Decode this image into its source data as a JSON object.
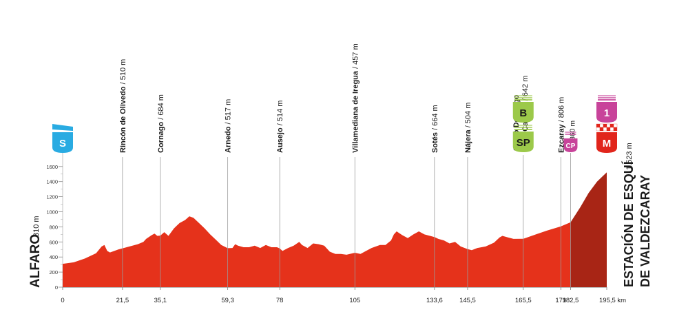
{
  "start_label": "ALFARO",
  "start_alt": "310 m",
  "finish_label_line1": "ESTACIÓN DE ESQUÍ",
  "finish_label_line2": "DE VALDEZCARAY",
  "finish_alt": "1.523 m",
  "colors": {
    "fill": "#e5321b",
    "finish_fill": "#a82515",
    "badge_start": "#29abe2",
    "badge_sprint": "#9cc94a",
    "badge_climb": "#c8439a",
    "badge_finish": "#e1251b"
  },
  "chart_data": {
    "type": "area",
    "xunit": "km",
    "ylabel": "",
    "xlim": [
      0,
      195.5
    ],
    "ylim": [
      0,
      1800
    ],
    "yticks": [
      0,
      200,
      400,
      600,
      800,
      1000,
      1200,
      1400,
      1600
    ],
    "xticks": [
      {
        "value": 0,
        "label": "0"
      },
      {
        "value": 21.5,
        "label": "21,5"
      },
      {
        "value": 35.1,
        "label": "35,1"
      },
      {
        "value": 59.3,
        "label": "59,3"
      },
      {
        "value": 78,
        "label": "78"
      },
      {
        "value": 105,
        "label": "105"
      },
      {
        "value": 133.6,
        "label": "133,6"
      },
      {
        "value": 145.5,
        "label": "145,5"
      },
      {
        "value": 165.5,
        "label": "165,5"
      },
      {
        "value": 179,
        "label": "179"
      },
      {
        "value": 182.5,
        "label": "182,5"
      },
      {
        "value": 195.5,
        "label": "195,5 km"
      }
    ],
    "profile": [
      [
        0,
        310
      ],
      [
        4,
        330
      ],
      [
        8,
        380
      ],
      [
        12,
        450
      ],
      [
        14,
        540
      ],
      [
        15,
        560
      ],
      [
        16,
        480
      ],
      [
        17,
        460
      ],
      [
        20,
        500
      ],
      [
        23,
        530
      ],
      [
        27,
        570
      ],
      [
        29,
        600
      ],
      [
        30,
        640
      ],
      [
        32,
        690
      ],
      [
        33,
        710
      ],
      [
        34,
        680
      ],
      [
        35.1,
        684
      ],
      [
        36.5,
        730
      ],
      [
        38,
        680
      ],
      [
        40,
        780
      ],
      [
        42,
        850
      ],
      [
        44,
        890
      ],
      [
        45.5,
        940
      ],
      [
        47,
        920
      ],
      [
        49,
        850
      ],
      [
        51,
        780
      ],
      [
        53,
        700
      ],
      [
        55,
        630
      ],
      [
        57,
        560
      ],
      [
        59.3,
        517
      ],
      [
        61,
        520
      ],
      [
        62,
        570
      ],
      [
        63,
        550
      ],
      [
        65,
        530
      ],
      [
        67,
        530
      ],
      [
        69,
        550
      ],
      [
        71,
        520
      ],
      [
        73,
        560
      ],
      [
        75,
        530
      ],
      [
        77,
        530
      ],
      [
        78,
        514
      ],
      [
        79,
        480
      ],
      [
        81,
        520
      ],
      [
        83,
        550
      ],
      [
        85,
        600
      ],
      [
        86,
        560
      ],
      [
        88,
        520
      ],
      [
        90,
        580
      ],
      [
        92,
        570
      ],
      [
        94,
        550
      ],
      [
        96,
        470
      ],
      [
        98,
        440
      ],
      [
        100,
        440
      ],
      [
        102,
        430
      ],
      [
        105,
        457
      ],
      [
        107,
        440
      ],
      [
        109,
        480
      ],
      [
        111,
        520
      ],
      [
        114,
        560
      ],
      [
        116,
        560
      ],
      [
        118,
        620
      ],
      [
        119,
        700
      ],
      [
        120,
        740
      ],
      [
        122,
        690
      ],
      [
        124,
        650
      ],
      [
        126,
        700
      ],
      [
        128,
        740
      ],
      [
        130,
        700
      ],
      [
        133.6,
        664
      ],
      [
        135,
        640
      ],
      [
        137,
        620
      ],
      [
        139,
        580
      ],
      [
        141,
        600
      ],
      [
        143,
        540
      ],
      [
        145.5,
        504
      ],
      [
        147,
        490
      ],
      [
        149,
        520
      ],
      [
        152,
        540
      ],
      [
        155,
        590
      ],
      [
        157,
        660
      ],
      [
        158,
        680
      ],
      [
        160,
        660
      ],
      [
        162,
        640
      ],
      [
        165.5,
        642
      ],
      [
        170,
        700
      ],
      [
        174,
        750
      ],
      [
        179,
        806
      ],
      [
        182.5,
        860
      ],
      [
        186,
        1060
      ],
      [
        189,
        1250
      ],
      [
        192,
        1400
      ],
      [
        195.5,
        1523
      ]
    ],
    "waypoints": [
      {
        "km": 21.5,
        "name": "Rincón de Olivedo",
        "alt": "510 m"
      },
      {
        "km": 35.1,
        "name": "Cornago",
        "alt": "684 m"
      },
      {
        "km": 59.3,
        "name": "Arnedo",
        "alt": "517 m"
      },
      {
        "km": 78,
        "name": "Ausejo",
        "alt": "514 m"
      },
      {
        "km": 105,
        "name": "Villamediana de Iregua",
        "alt": "457 m"
      },
      {
        "km": 133.6,
        "name": "Sotés",
        "alt": "664 m"
      },
      {
        "km": 145.5,
        "name": "Nájera",
        "alt": "504 m"
      },
      {
        "km": 165.5,
        "name": "Santo Domingo",
        "name2": "de la Calzada",
        "alt": "642 m"
      },
      {
        "km": 179,
        "name": "Ezcaray",
        "alt": "806 m"
      },
      {
        "km": 182.5,
        "name": "",
        "alt": "860 m"
      }
    ],
    "badges": [
      {
        "km": 0,
        "text": "S",
        "kind": "start"
      },
      {
        "km": 165.5,
        "text": "B",
        "kind": "sprint"
      },
      {
        "km": 165.5,
        "text": "SP",
        "kind": "sprint"
      },
      {
        "km": 182.5,
        "text": "CP",
        "kind": "climb"
      },
      {
        "km": 195.5,
        "text": "1",
        "kind": "climb"
      },
      {
        "km": 195.5,
        "text": "M",
        "kind": "finish"
      }
    ]
  }
}
